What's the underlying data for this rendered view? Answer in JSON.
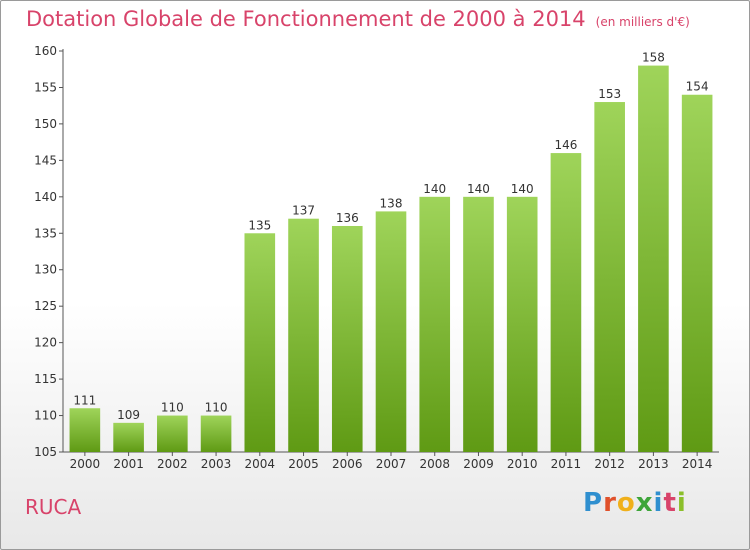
{
  "title": "Dotation Globale de Fonctionnement de 2000 à 2014",
  "unit_note": "(en milliers d'€)",
  "place": "RUCA",
  "logo": "Proxiti",
  "colors": {
    "title": "#d8436a",
    "bar_top": "#9fd45a",
    "bar_bottom": "#5f9a14",
    "text": "#333333"
  },
  "chart_data": {
    "type": "bar",
    "title": "Dotation Globale de Fonctionnement de 2000 à 2014",
    "subtitle": "(en milliers d'€)",
    "xlabel": "",
    "ylabel": "",
    "ylim": [
      105,
      160
    ],
    "yticks": [
      105,
      110,
      115,
      120,
      125,
      130,
      135,
      140,
      145,
      150,
      155,
      160
    ],
    "grid": false,
    "categories": [
      "2000",
      "2001",
      "2002",
      "2003",
      "2004",
      "2005",
      "2006",
      "2007",
      "2008",
      "2009",
      "2010",
      "2011",
      "2012",
      "2013",
      "2014"
    ],
    "values": [
      111,
      109,
      110,
      110,
      135,
      137,
      136,
      138,
      140,
      140,
      140,
      146,
      153,
      158,
      154
    ]
  }
}
